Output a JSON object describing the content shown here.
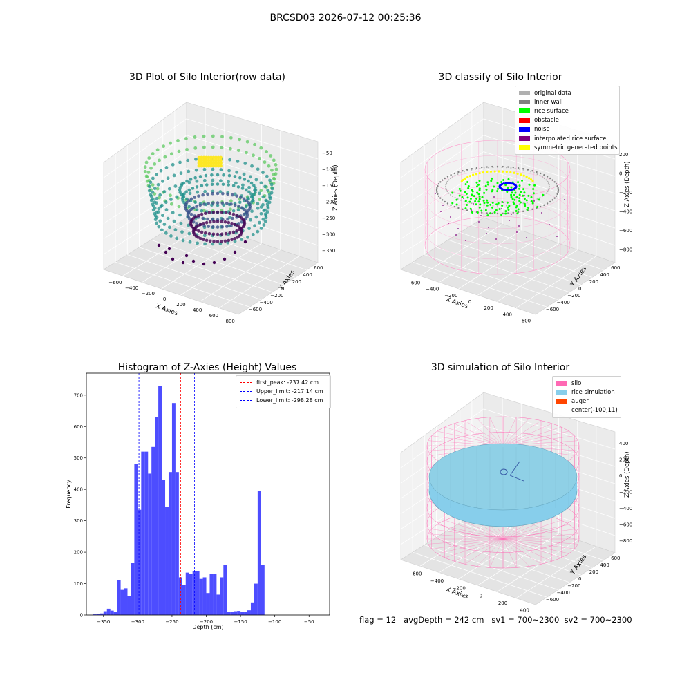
{
  "figure": {
    "title": "BRCSD03 2026-07-12 00:25:36",
    "footer": {
      "flag": "flag = 12",
      "avg_depth": "avgDepth = 242 cm",
      "sv1": "sv1 = 700~2300",
      "sv2": "sv2 = 700~2300"
    }
  },
  "chart_data": [
    {
      "type": "scatter",
      "title": "3D Plot of Silo Interior(row data)",
      "xlabel": "X Axies",
      "ylabel": "Y Axies",
      "zlabel": "Z Axies (Depth)",
      "x_ticks": [
        "−600",
        "−400",
        "−200",
        "0",
        "200",
        "400",
        "600",
        "800"
      ],
      "y_ticks": [
        "−600",
        "−400",
        "−200",
        "0",
        "200",
        "400",
        "600"
      ],
      "z_ticks": [
        "−50",
        "−100",
        "−150",
        "−200",
        "−250",
        "−300",
        "−350"
      ],
      "colormap": "viridis",
      "colormap_colors": [
        "#440154",
        "#3b528b",
        "#21918c",
        "#5ec962",
        "#fde725"
      ]
    },
    {
      "type": "scatter",
      "title": "3D classify of Silo Interior",
      "xlabel": "X Axies",
      "ylabel": "Y Axies",
      "zlabel": "Z Axies (Depth)",
      "x_ticks": [
        "−600",
        "−400",
        "−200",
        "0",
        "200",
        "400",
        "600"
      ],
      "y_ticks": [
        "−600",
        "−400",
        "−200",
        "0",
        "200",
        "400",
        "600"
      ],
      "z_ticks": [
        "200",
        "0",
        "−200",
        "−400",
        "−600",
        "−800"
      ],
      "legend_position": "top-right",
      "legend": [
        {
          "label": "original data",
          "color": "#b0b0b0"
        },
        {
          "label": "inner wall",
          "color": "#808080"
        },
        {
          "label": "rice surface",
          "color": "#00ff00"
        },
        {
          "label": "obstacle",
          "color": "#ff0000"
        },
        {
          "label": "noise",
          "color": "#0000ff"
        },
        {
          "label": "interpolated rice surface",
          "color": "#800080"
        },
        {
          "label": "symmetric generated points",
          "color": "#ffff00"
        }
      ],
      "wall_color": "#ff99cc"
    },
    {
      "type": "bar",
      "title": "Histogram of Z-Axies (Height) Values",
      "xlabel": "Depth (cm)",
      "ylabel": "Frequency",
      "xlim": [
        -375,
        -20
      ],
      "ylim": [
        0,
        770
      ],
      "bin_width": 5,
      "x_ticks": [
        -350,
        -300,
        -250,
        -200,
        -150,
        -100,
        -50
      ],
      "y_ticks": [
        0,
        100,
        200,
        300,
        400,
        500,
        600,
        700
      ],
      "bar_color": "#4d4dff",
      "bin_starts": [
        -365,
        -360,
        -355,
        -350,
        -345,
        -340,
        -335,
        -330,
        -325,
        -320,
        -315,
        -310,
        -305,
        -300,
        -295,
        -290,
        -285,
        -280,
        -275,
        -270,
        -265,
        -260,
        -255,
        -250,
        -245,
        -240,
        -235,
        -230,
        -225,
        -220,
        -215,
        -210,
        -205,
        -200,
        -195,
        -190,
        -185,
        -180,
        -175,
        -170,
        -165,
        -160,
        -155,
        -150,
        -145,
        -140,
        -135,
        -130,
        -125,
        -120,
        -115,
        -110,
        -105,
        -100,
        -95,
        -90,
        -85,
        -80,
        -75,
        -70,
        -65,
        -60,
        -55,
        -50,
        -45,
        -40,
        -35,
        -30
      ],
      "values": [
        2,
        3,
        5,
        12,
        20,
        14,
        10,
        110,
        80,
        85,
        60,
        165,
        480,
        335,
        520,
        520,
        450,
        535,
        630,
        730,
        430,
        345,
        455,
        675,
        455,
        120,
        95,
        135,
        130,
        140,
        140,
        115,
        120,
        70,
        130,
        130,
        65,
        120,
        160,
        10,
        10,
        12,
        13,
        10,
        10,
        15,
        40,
        100,
        395,
        160,
        0,
        0,
        0,
        0,
        0,
        0,
        0,
        0,
        0,
        0,
        0,
        0,
        0,
        0,
        0,
        0,
        0,
        0
      ],
      "lines": [
        {
          "label": "first_peak: -237.42 cm",
          "x": -237.42,
          "color": "#ff0000"
        },
        {
          "label": "Upper_limit: -217.14 cm",
          "x": -217.14,
          "color": "#0000ff"
        },
        {
          "label": "Lower_limit: -298.28 cm",
          "x": -298.28,
          "color": "#0000ff"
        }
      ],
      "legend_position": "top-right"
    },
    {
      "type": "scatter",
      "title": "3D simulation of Silo Interior",
      "xlabel": "X Axies",
      "ylabel": "Y Axies",
      "zlabel": "Z Axies (Depth)",
      "x_ticks": [
        "−600",
        "−400",
        "−200",
        "0",
        "200",
        "400"
      ],
      "y_ticks": [
        "−600",
        "−400",
        "−200",
        "0",
        "200",
        "400",
        "600"
      ],
      "z_ticks": [
        "400",
        "200",
        "0",
        "−200",
        "−400",
        "−600",
        "−800"
      ],
      "legend_position": "top-right",
      "legend": [
        {
          "label": "silo",
          "color": "#ff69b4"
        },
        {
          "label": "rice simulation",
          "color": "#87ceeb"
        },
        {
          "label": "auger",
          "color": "#ff4500"
        },
        {
          "label": "center(-100,11)",
          "color": "#ffffff"
        }
      ]
    }
  ]
}
